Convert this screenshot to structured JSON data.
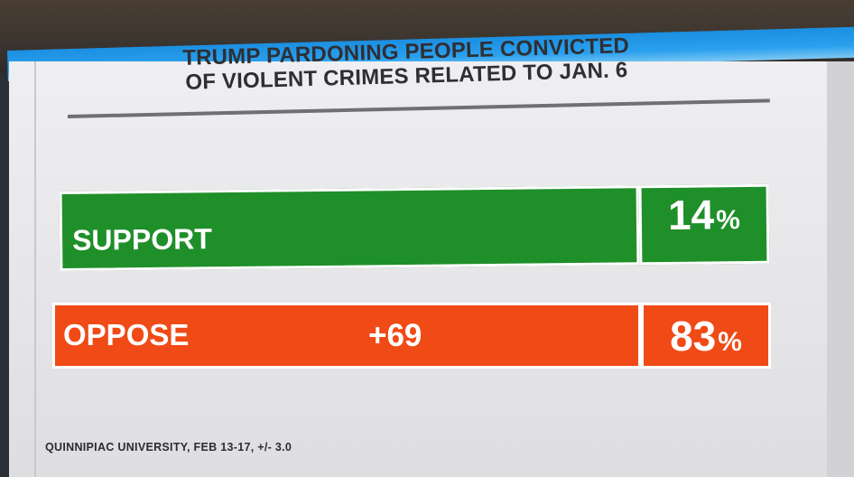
{
  "title_lines": [
    "TRUMP PARDONING PEOPLE CONVICTED",
    "OF VIOLENT CRIMES RELATED TO JAN. 6"
  ],
  "margin_label": "+69",
  "source": "QUINNIPIAC UNIVERSITY, FEB 13-17, +/- 3.0",
  "colors": {
    "support": "#1f8f2a",
    "oppose": "#f04a16",
    "accent": "#1c8fe0"
  },
  "chart_data": {
    "type": "bar",
    "orientation": "horizontal",
    "title": "TRUMP PARDONING PEOPLE CONVICTED OF VIOLENT CRIMES RELATED TO JAN. 6",
    "categories": [
      "SUPPORT",
      "OPPOSE"
    ],
    "values": [
      14,
      83
    ],
    "value_labels": [
      "14",
      "83"
    ],
    "unit": "%",
    "annotations": [
      "+69"
    ],
    "legend": "none"
  }
}
